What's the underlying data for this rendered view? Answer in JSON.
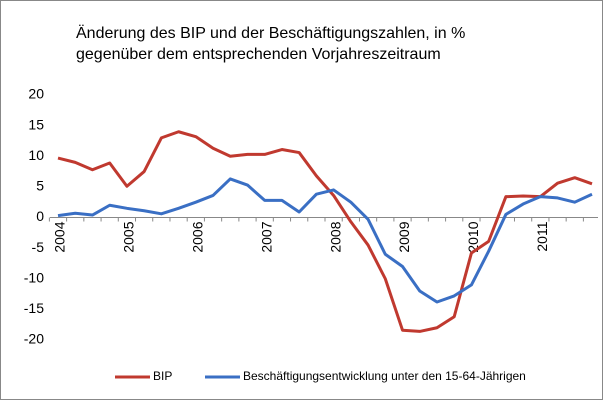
{
  "chart_data": {
    "type": "line",
    "title": [
      "Änderung des BIP und der Beschäftigungszahlen, in %",
      "gegenüber dem entsprechenden Vorjahreszeitraum"
    ],
    "categories": [
      "2004",
      null,
      null,
      null,
      "2005",
      null,
      null,
      null,
      "2006",
      null,
      null,
      null,
      "2007",
      null,
      null,
      null,
      "2008",
      null,
      null,
      null,
      "2009",
      null,
      null,
      null,
      "2010",
      null,
      null,
      null,
      "2011",
      null,
      null,
      null
    ],
    "series": [
      {
        "name": "BIP",
        "color": "#c0392f",
        "values": [
          9.7,
          9,
          7.8,
          8.9,
          5.1,
          7.5,
          13,
          14,
          13.2,
          11.3,
          10,
          10.3,
          10.3,
          11.1,
          10.6,
          6.8,
          3.6,
          -0.7,
          -4.5,
          -10,
          -18.4,
          -18.6,
          -18,
          -16.2,
          -5.8,
          -3.9,
          3.4,
          3.5,
          3.4,
          5.6,
          6.5,
          5.5
        ]
      },
      {
        "name": "Beschäftigungsentwicklung unter den 15-64-Jährigen",
        "color": "#3a6fc4",
        "values": [
          0.3,
          0.7,
          0.4,
          2,
          1.5,
          1.1,
          0.6,
          1.5,
          2.5,
          3.6,
          6.3,
          5.3,
          2.8,
          2.8,
          0.9,
          3.8,
          4.5,
          2.5,
          -0.3,
          -6,
          -8,
          -12,
          -13.8,
          -12.8,
          -11,
          -5.5,
          0.5,
          2.2,
          3.4,
          3.2,
          2.5,
          3.8
        ]
      }
    ],
    "ylim": [
      -20,
      20
    ],
    "yticks": [
      -20,
      -15,
      -10,
      -5,
      0,
      5,
      10,
      15,
      20
    ],
    "legend": "bottom"
  }
}
